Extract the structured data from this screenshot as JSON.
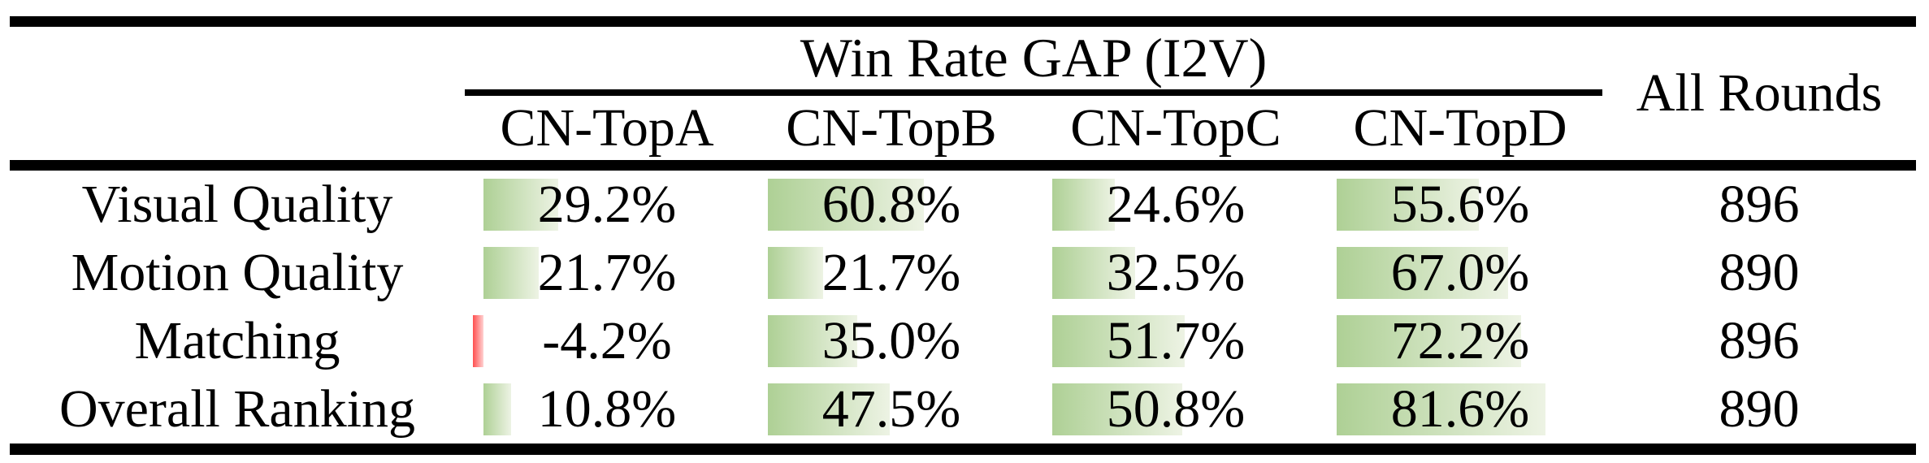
{
  "table": {
    "group_header": "Win Rate GAP (I2V)",
    "all_rounds_header": "All Rounds",
    "columns": [
      "CN-TopA",
      "CN-TopB",
      "CN-TopC",
      "CN-TopD"
    ],
    "rows": [
      {
        "label": "Visual Quality",
        "cells": [
          {
            "text": "29.2%",
            "value": 29.2
          },
          {
            "text": "60.8%",
            "value": 60.8
          },
          {
            "text": "24.6%",
            "value": 24.6
          },
          {
            "text": "55.6%",
            "value": 55.6
          }
        ],
        "all_rounds": "896"
      },
      {
        "label": "Motion Quality",
        "cells": [
          {
            "text": "21.7%",
            "value": 21.7
          },
          {
            "text": "21.7%",
            "value": 21.7
          },
          {
            "text": "32.5%",
            "value": 32.5
          },
          {
            "text": "67.0%",
            "value": 67.0
          }
        ],
        "all_rounds": "890"
      },
      {
        "label": "Matching",
        "cells": [
          {
            "text": "-4.2%",
            "value": -4.2
          },
          {
            "text": "35.0%",
            "value": 35.0
          },
          {
            "text": "51.7%",
            "value": 51.7
          },
          {
            "text": "72.2%",
            "value": 72.2
          }
        ],
        "all_rounds": "896"
      },
      {
        "label": "Overall Ranking",
        "cells": [
          {
            "text": "10.8%",
            "value": 10.8
          },
          {
            "text": "47.5%",
            "value": 47.5
          },
          {
            "text": "50.8%",
            "value": 50.8
          },
          {
            "text": "81.6%",
            "value": 81.6
          }
        ],
        "all_rounds": "890"
      }
    ],
    "styles": {
      "rule_color": "#000000",
      "positive_bar_start": "#aed095",
      "positive_bar_end": "#edf3e4",
      "negative_bar_start": "#ff4f4f",
      "negative_bar_end": "#ffd2d2"
    }
  },
  "chart_data": {
    "type": "table",
    "title": "Win Rate GAP (I2V)",
    "columns": [
      "CN-TopA",
      "CN-TopB",
      "CN-TopC",
      "CN-TopD",
      "All Rounds"
    ],
    "rows": [
      {
        "label": "Visual Quality",
        "values": [
          29.2,
          60.8,
          24.6,
          55.6
        ],
        "all_rounds": 896
      },
      {
        "label": "Motion Quality",
        "values": [
          21.7,
          21.7,
          32.5,
          67.0
        ],
        "all_rounds": 890
      },
      {
        "label": "Matching",
        "values": [
          -4.2,
          35.0,
          51.7,
          72.2
        ],
        "all_rounds": 896
      },
      {
        "label": "Overall Ranking",
        "values": [
          10.8,
          47.5,
          50.8,
          81.6
        ],
        "all_rounds": 890
      }
    ],
    "value_unit": "%",
    "bar_style": "green gradient data bars proportional to value, red for negative"
  }
}
